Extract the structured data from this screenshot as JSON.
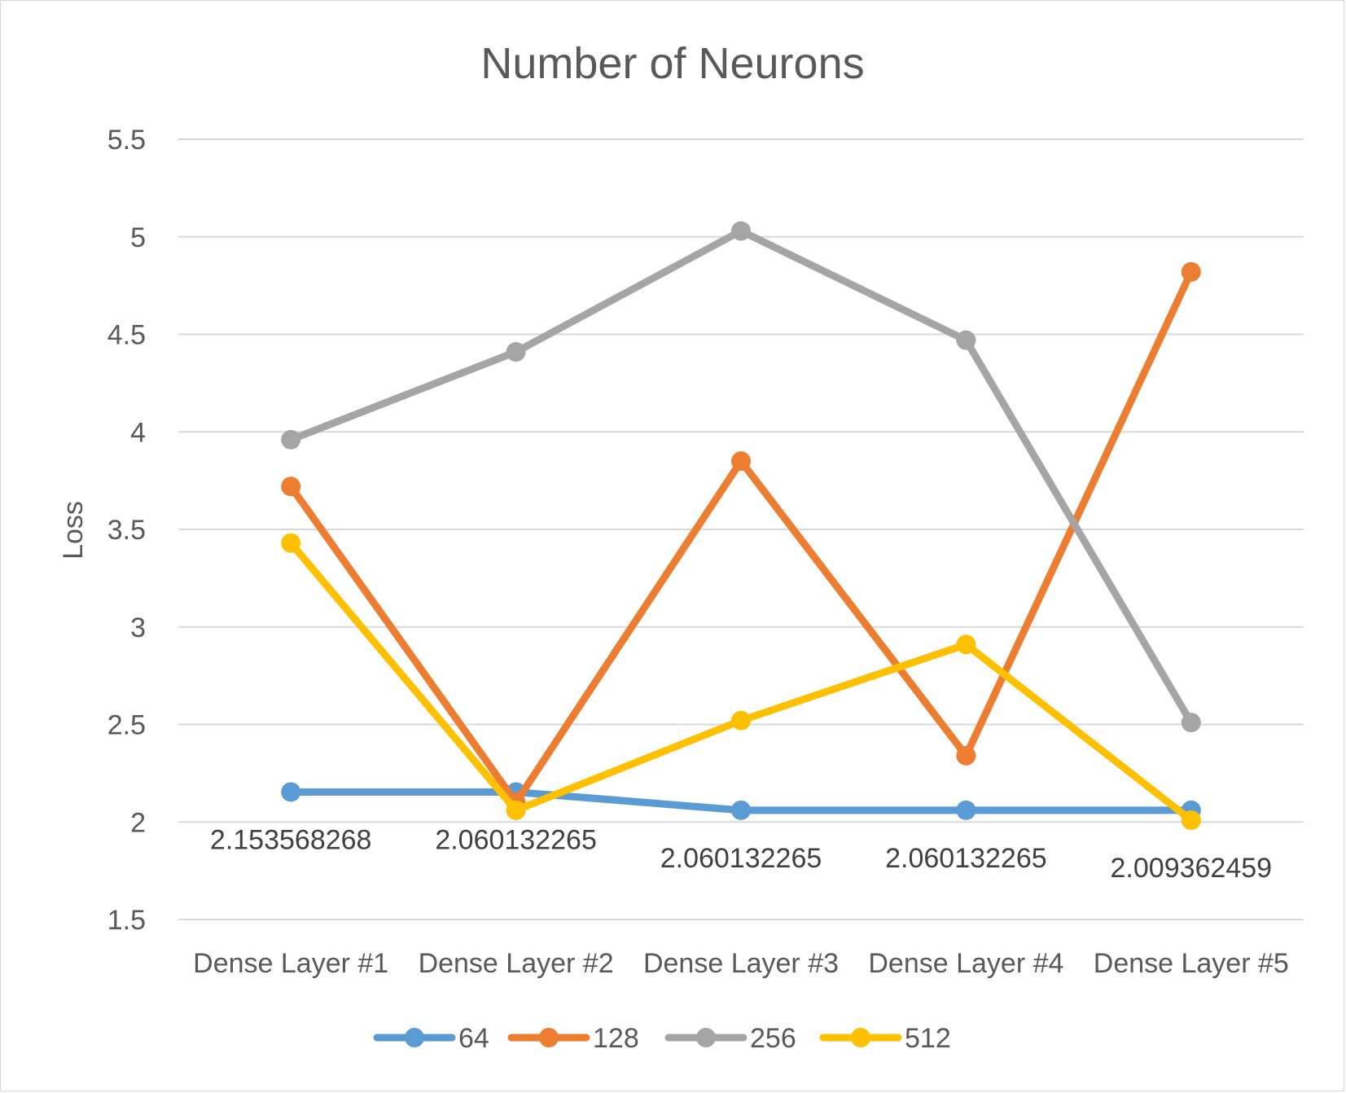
{
  "chart_data": {
    "type": "line",
    "title": "Number of Neurons",
    "xlabel": "",
    "ylabel": "Loss",
    "categories": [
      "Dense Layer #1",
      "Dense Layer #2",
      "Dense Layer #3",
      "Dense Layer #4",
      "Dense Layer #5"
    ],
    "ylim": [
      1.5,
      5.5
    ],
    "yticks": [
      "1.5",
      "2",
      "2.5",
      "3",
      "3.5",
      "4",
      "4.5",
      "5",
      "5.5"
    ],
    "grid": true,
    "legend_position": "bottom",
    "series": [
      {
        "name": "64",
        "color": "#5b9bd5",
        "values": [
          2.153568268,
          2.153568268,
          2.060132265,
          2.060132265,
          2.060132265
        ]
      },
      {
        "name": "128",
        "color": "#ed7d31",
        "values": [
          3.72,
          2.1,
          3.85,
          2.34,
          4.82
        ]
      },
      {
        "name": "256",
        "color": "#a5a5a5",
        "values": [
          3.96,
          4.41,
          5.03,
          4.47,
          2.51
        ]
      },
      {
        "name": "512",
        "color": "#ffc000",
        "values": [
          3.43,
          2.06,
          2.52,
          2.91,
          2.009362459
        ]
      }
    ],
    "data_labels": [
      "2.153568268",
      "2.060132265",
      "2.060132265",
      "2.060132265",
      "2.009362459"
    ]
  }
}
